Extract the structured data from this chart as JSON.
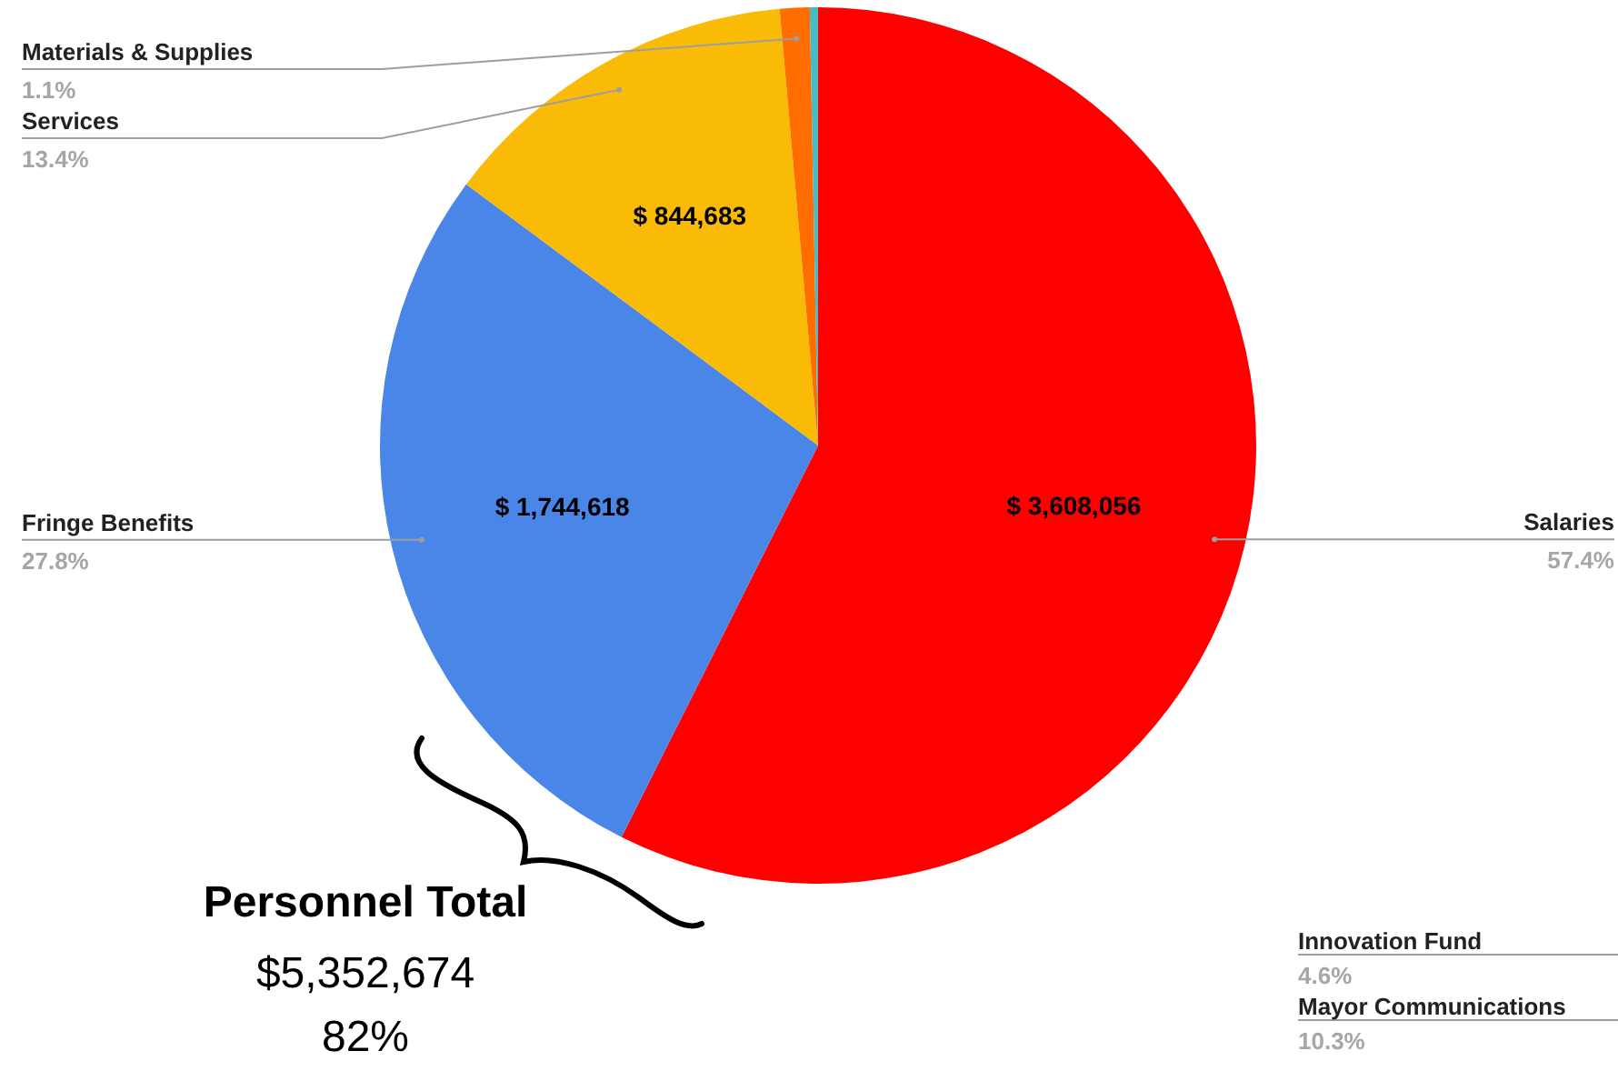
{
  "chart_data": {
    "type": "pie",
    "categories": [
      "Salaries",
      "Fringe Benefits",
      "Services",
      "Materials & Supplies",
      null
    ],
    "values": [
      3608056,
      1744618,
      844683,
      69000,
      19000
    ],
    "colors": [
      "#ff0000",
      "#4a86e8",
      "#f9bb06",
      "#ff6d01",
      "#46bdc6"
    ],
    "value_labels": [
      "$ 3,608,056",
      "$ 1,744,618",
      "$ 844,683",
      null,
      null
    ],
    "annotations": [
      "Personnel Total",
      "$5,352,674",
      "82%",
      "Innovation Fund",
      "4.6%",
      "Mayor Communications",
      "10.3%",
      "57.4%",
      "27.8%",
      "13.4%",
      "1.1%"
    ]
  }
}
